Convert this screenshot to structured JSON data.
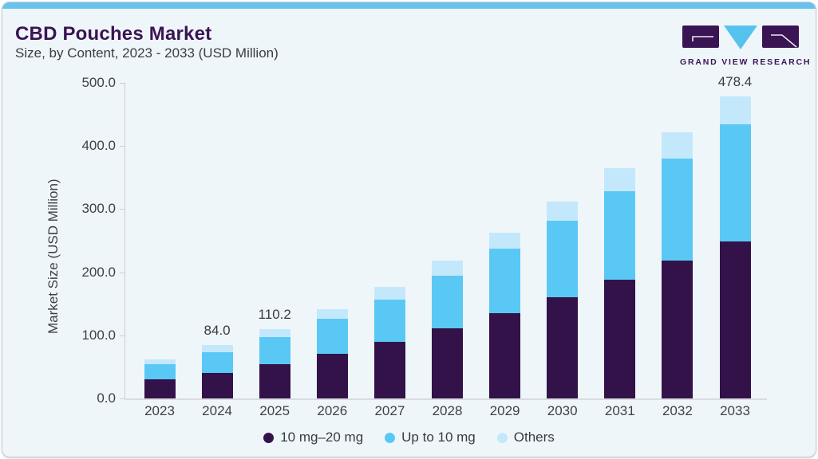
{
  "header": {
    "title": "CBD Pouches Market",
    "subtitle": "Size, by Content, 2023 - 2033 (USD Million)",
    "logo_text": "GRAND VIEW RESEARCH"
  },
  "colors": {
    "accent_strip": "#68C3EC",
    "card_background": "#EFF6FA",
    "title_purple": "#3A1453",
    "axis_text": "#3F4049",
    "axis_line": "#C9CED6"
  },
  "chart_data": {
    "type": "bar",
    "stacked": true,
    "title": "CBD Pouches Market Size, by Content, 2023 - 2033 (USD Million)",
    "xlabel": "",
    "ylabel": "Market Size (USD Million)",
    "ylim": [
      0,
      500
    ],
    "ytick_labels": [
      "0.0",
      "100.0",
      "200.0",
      "300.0",
      "400.0",
      "500.0"
    ],
    "grid": false,
    "legend_position": "bottom",
    "categories": [
      "2023",
      "2024",
      "2025",
      "2026",
      "2027",
      "2028",
      "2029",
      "2030",
      "2031",
      "2032",
      "2033"
    ],
    "series": [
      {
        "name": "10 mg–20 mg",
        "color": "#331249",
        "values": [
          30.5,
          40.8,
          54.0,
          71.0,
          89.5,
          110.5,
          135.0,
          160.0,
          188.5,
          218.0,
          249.2
        ]
      },
      {
        "name": "Up to 10 mg",
        "color": "#5AC8F5",
        "values": [
          23.5,
          33.0,
          43.5,
          55.0,
          67.5,
          84.5,
          102.0,
          121.5,
          140.0,
          161.5,
          185.1
        ]
      },
      {
        "name": "Others",
        "color": "#C4E8FB",
        "values": [
          8.0,
          10.2,
          12.7,
          16.0,
          20.0,
          23.0,
          25.5,
          30.0,
          36.5,
          42.0,
          44.1
        ]
      }
    ],
    "point_labels": [
      "",
      "84.0",
      "110.2",
      "",
      "",
      "",
      "",
      "",
      "",
      "",
      "478.4"
    ]
  }
}
